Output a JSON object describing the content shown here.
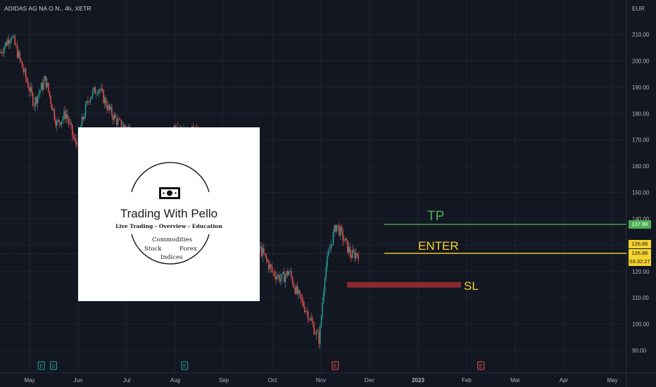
{
  "symbol_label": "ADIDAS AG NA O.N., 4h, XETR",
  "currency_label": "EUR",
  "logo": {
    "title": "Trading With Pello",
    "subtitle": "Live Trading - Overview - Education",
    "word_commodities": "Commodities",
    "word_stock": "Stock",
    "word_forex": "Forex",
    "word_indices": "Indices",
    "icon": "banknote-icon"
  },
  "chart_data": {
    "type": "candlestick",
    "title": "ADIDAS AG NA O.N., 4h, XETR",
    "ylabel": "EUR",
    "ylim": [
      85,
      215
    ],
    "y_ticks": [
      90,
      100,
      110,
      120,
      130,
      140,
      150,
      160,
      170,
      180,
      190,
      200,
      210
    ],
    "y_tick_labels": [
      "90.00",
      "100.00",
      "110.00",
      "120.00",
      "130.00",
      "140.00",
      "150.00",
      "160.00",
      "170.00",
      "180.00",
      "190.00",
      "200.00",
      "210.00"
    ],
    "x_tick_labels": [
      "May",
      "Jun",
      "Jul",
      "Aug",
      "Sep",
      "Oct",
      "Nov",
      "Dec",
      "2023",
      "Feb",
      "Mar",
      "Apr",
      "May"
    ],
    "x_tick_bold": "2023",
    "grid": true,
    "price_path": [
      [
        0,
        203
      ],
      [
        0.6,
        210
      ],
      [
        1.2,
        197
      ],
      [
        1.8,
        184
      ],
      [
        2.4,
        193
      ],
      [
        3.0,
        176
      ],
      [
        3.5,
        180
      ],
      [
        4.0,
        168
      ],
      [
        4.7,
        186
      ],
      [
        5.2,
        190
      ],
      [
        5.8,
        181
      ],
      [
        6.3,
        176
      ],
      [
        6.9,
        174
      ],
      [
        7.3,
        165
      ],
      [
        7.9,
        168
      ],
      [
        8.4,
        171
      ],
      [
        8.9,
        167
      ],
      [
        9.3,
        177
      ],
      [
        9.9,
        171
      ],
      [
        10.3,
        174
      ],
      [
        10.7,
        166
      ],
      [
        11.2,
        159
      ],
      [
        11.8,
        154
      ],
      [
        12.3,
        146
      ],
      [
        12.8,
        141
      ],
      [
        13.3,
        133
      ],
      [
        13.9,
        127
      ],
      [
        14.4,
        120
      ],
      [
        14.9,
        117
      ],
      [
        15.3,
        120
      ],
      [
        15.7,
        112
      ],
      [
        16.3,
        104
      ],
      [
        16.7,
        97
      ],
      [
        16.9,
        94
      ],
      [
        17.2,
        120
      ],
      [
        17.5,
        130
      ],
      [
        17.8,
        138
      ],
      [
        18.2,
        132
      ],
      [
        18.6,
        126
      ],
      [
        18.9,
        126.86
      ]
    ],
    "x_domain": [
      0,
      19
    ],
    "levels": [
      {
        "label": "TP",
        "price": 137.88,
        "price_label": "137.88",
        "color": "#4caf50"
      },
      {
        "label": "ENTER",
        "price": 126.86,
        "price_label": "126.86",
        "color": "#f5d22f"
      },
      {
        "label": "SL",
        "price": 114.9,
        "color": "#8b2a2e"
      }
    ],
    "last_price_label": "126.86",
    "countdown_label": "03:32:27",
    "event_markers": [
      {
        "letter": "E",
        "color": "#26a69a",
        "month_index": 0.2
      },
      {
        "letter": "D",
        "color": "#26a69a",
        "month_index": 0.45
      },
      {
        "letter": "E",
        "color": "#26a69a",
        "month_index": 3.15
      },
      {
        "letter": "E",
        "color": "#ef5350",
        "month_index": 6.25
      },
      {
        "letter": "E",
        "color": "#ef5350",
        "month_index": 9.25
      }
    ],
    "colors": {
      "up": "#26a69a",
      "down": "#ef5350",
      "grid": "#1f2330",
      "axis_text": "#b2b5be"
    }
  }
}
